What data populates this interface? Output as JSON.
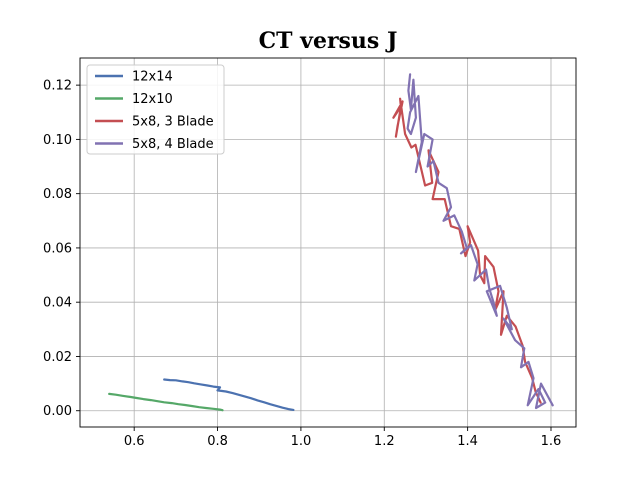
{
  "chart_data": {
    "type": "line",
    "title": "CT versus J",
    "xlabel": "",
    "ylabel": "",
    "xlim": [
      0.47,
      1.66
    ],
    "ylim": [
      -0.006,
      0.13
    ],
    "xticks": [
      "0.6",
      "0.8",
      "1.0",
      "1.2",
      "1.4",
      "1.6"
    ],
    "yticks": [
      "0.00",
      "0.02",
      "0.04",
      "0.06",
      "0.08",
      "0.10",
      "0.12"
    ],
    "grid": true,
    "legend_position": "top-left",
    "series": [
      {
        "name": "12x14",
        "color": "#4c72b0",
        "x": [
          0.672,
          0.686,
          0.7,
          0.716,
          0.73,
          0.744,
          0.76,
          0.776,
          0.79,
          0.806,
          0.8,
          0.82,
          0.836,
          0.85,
          0.866,
          0.88,
          0.896,
          0.912,
          0.926,
          0.94,
          0.956,
          0.97,
          0.982
        ],
        "y": [
          0.0115,
          0.0113,
          0.0112,
          0.0108,
          0.0105,
          0.0101,
          0.0097,
          0.0093,
          0.0089,
          0.0086,
          0.0075,
          0.0071,
          0.0065,
          0.0059,
          0.0052,
          0.0046,
          0.0038,
          0.0031,
          0.0024,
          0.0018,
          0.0011,
          0.0006,
          0.0003
        ]
      },
      {
        "name": "12x10",
        "color": "#55a868",
        "x": [
          0.54,
          0.556,
          0.572,
          0.59,
          0.606,
          0.622,
          0.64,
          0.656,
          0.672,
          0.69,
          0.706,
          0.722,
          0.74,
          0.756,
          0.772,
          0.79,
          0.806,
          0.812
        ],
        "y": [
          0.0062,
          0.0059,
          0.0055,
          0.0051,
          0.0047,
          0.0043,
          0.0039,
          0.0035,
          0.0031,
          0.0028,
          0.0024,
          0.0021,
          0.0017,
          0.0013,
          0.001,
          0.0007,
          0.0004,
          0.0002
        ]
      },
      {
        "name": "5x8, 3 Blade",
        "color": "#c44e52",
        "x": [
          1.235,
          1.222,
          1.244,
          1.232,
          1.228,
          1.24,
          1.238,
          1.25,
          1.265,
          1.275,
          1.298,
          1.315,
          1.306,
          1.33,
          1.316,
          1.345,
          1.36,
          1.38,
          1.395,
          1.406,
          1.4,
          1.425,
          1.43,
          1.44,
          1.442,
          1.462,
          1.474,
          1.466,
          1.486,
          1.48,
          1.494,
          1.515,
          1.532,
          1.538,
          1.555,
          1.563,
          1.575
        ],
        "y": [
          0.111,
          0.108,
          0.114,
          0.105,
          0.101,
          0.112,
          0.115,
          0.102,
          0.097,
          0.098,
          0.083,
          0.084,
          0.096,
          0.088,
          0.078,
          0.078,
          0.068,
          0.067,
          0.057,
          0.062,
          0.068,
          0.059,
          0.05,
          0.047,
          0.057,
          0.053,
          0.044,
          0.037,
          0.044,
          0.028,
          0.035,
          0.031,
          0.024,
          0.018,
          0.012,
          0.007,
          0.003
        ]
      },
      {
        "name": "5x8, 4 Blade",
        "color": "#8172b2",
        "x": [
          1.262,
          1.258,
          1.264,
          1.27,
          1.276,
          1.264,
          1.256,
          1.262,
          1.282,
          1.29,
          1.276,
          1.296,
          1.316,
          1.304,
          1.318,
          1.33,
          1.35,
          1.36,
          1.342,
          1.368,
          1.386,
          1.398,
          1.384,
          1.408,
          1.424,
          1.416,
          1.444,
          1.452,
          1.462,
          1.47,
          1.446,
          1.478,
          1.494,
          1.506,
          1.486,
          1.514,
          1.536,
          1.528,
          1.546,
          1.558,
          1.544,
          1.57,
          1.586,
          1.564,
          1.576,
          1.59,
          1.604
        ],
        "y": [
          0.124,
          0.118,
          0.111,
          0.122,
          0.108,
          0.102,
          0.104,
          0.11,
          0.116,
          0.099,
          0.088,
          0.102,
          0.1,
          0.09,
          0.092,
          0.084,
          0.082,
          0.075,
          0.07,
          0.072,
          0.066,
          0.06,
          0.058,
          0.061,
          0.054,
          0.048,
          0.052,
          0.045,
          0.04,
          0.035,
          0.044,
          0.046,
          0.038,
          0.03,
          0.034,
          0.026,
          0.023,
          0.016,
          0.018,
          0.012,
          0.002,
          0.008,
          0.003,
          0.001,
          0.01,
          0.006,
          0.002
        ]
      }
    ]
  }
}
